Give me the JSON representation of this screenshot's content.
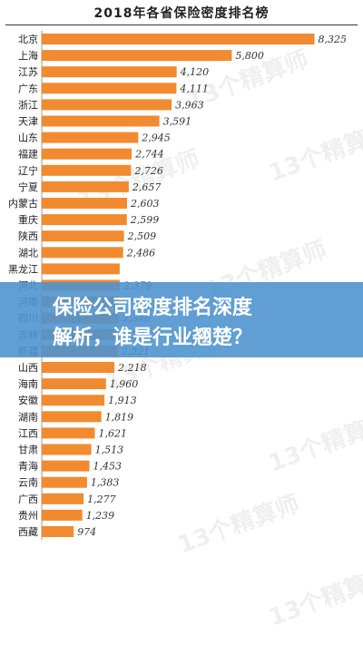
{
  "chart_data": {
    "type": "bar",
    "orientation": "horizontal",
    "title": "2018年各省保险密度排名榜",
    "xlabel": "",
    "ylabel": "",
    "grid": false,
    "legend": "none",
    "bar_color": "#f28a30",
    "categories": [
      "北京",
      "上海",
      "江苏",
      "广东",
      "浙江",
      "天津",
      "山东",
      "福建",
      "辽宁",
      "宁夏",
      "内蒙古",
      "重庆",
      "陕西",
      "湖北",
      "黑龙江",
      "河北",
      "河南",
      "四川",
      "吉林",
      "新疆",
      "山西",
      "海南",
      "安徽",
      "湖南",
      "江西",
      "甘肃",
      "青海",
      "云南",
      "广西",
      "贵州",
      "西藏"
    ],
    "values": [
      8325,
      5800,
      4120,
      4111,
      3963,
      3591,
      2945,
      2744,
      2726,
      2657,
      2603,
      2599,
      2509,
      2486,
      2379,
      2379,
      2350,
      2348,
      2331,
      2321,
      2218,
      1960,
      1913,
      1819,
      1621,
      1513,
      1453,
      1383,
      1277,
      1239,
      974
    ],
    "value_labels": [
      "8,325",
      "5,800",
      "4,120",
      "4,111",
      "3,963",
      "3,591",
      "2,945",
      "2,744",
      "2,726",
      "2,657",
      "2,603",
      "2,599",
      "2,509",
      "2,486",
      "",
      "2,379",
      "",
      "2,348",
      "2,331",
      "2,321",
      "2,218",
      "1,960",
      "1,913",
      "1,819",
      "1,621",
      "1,513",
      "1,453",
      "1,383",
      "1,277",
      "1,239",
      "974"
    ]
  },
  "banner": {
    "line1": "保险公司密度排名深度",
    "line2": "解析，谁是行业翘楚？",
    "color": "#4f94ce"
  },
  "watermark": {
    "text": "13个精算师"
  }
}
